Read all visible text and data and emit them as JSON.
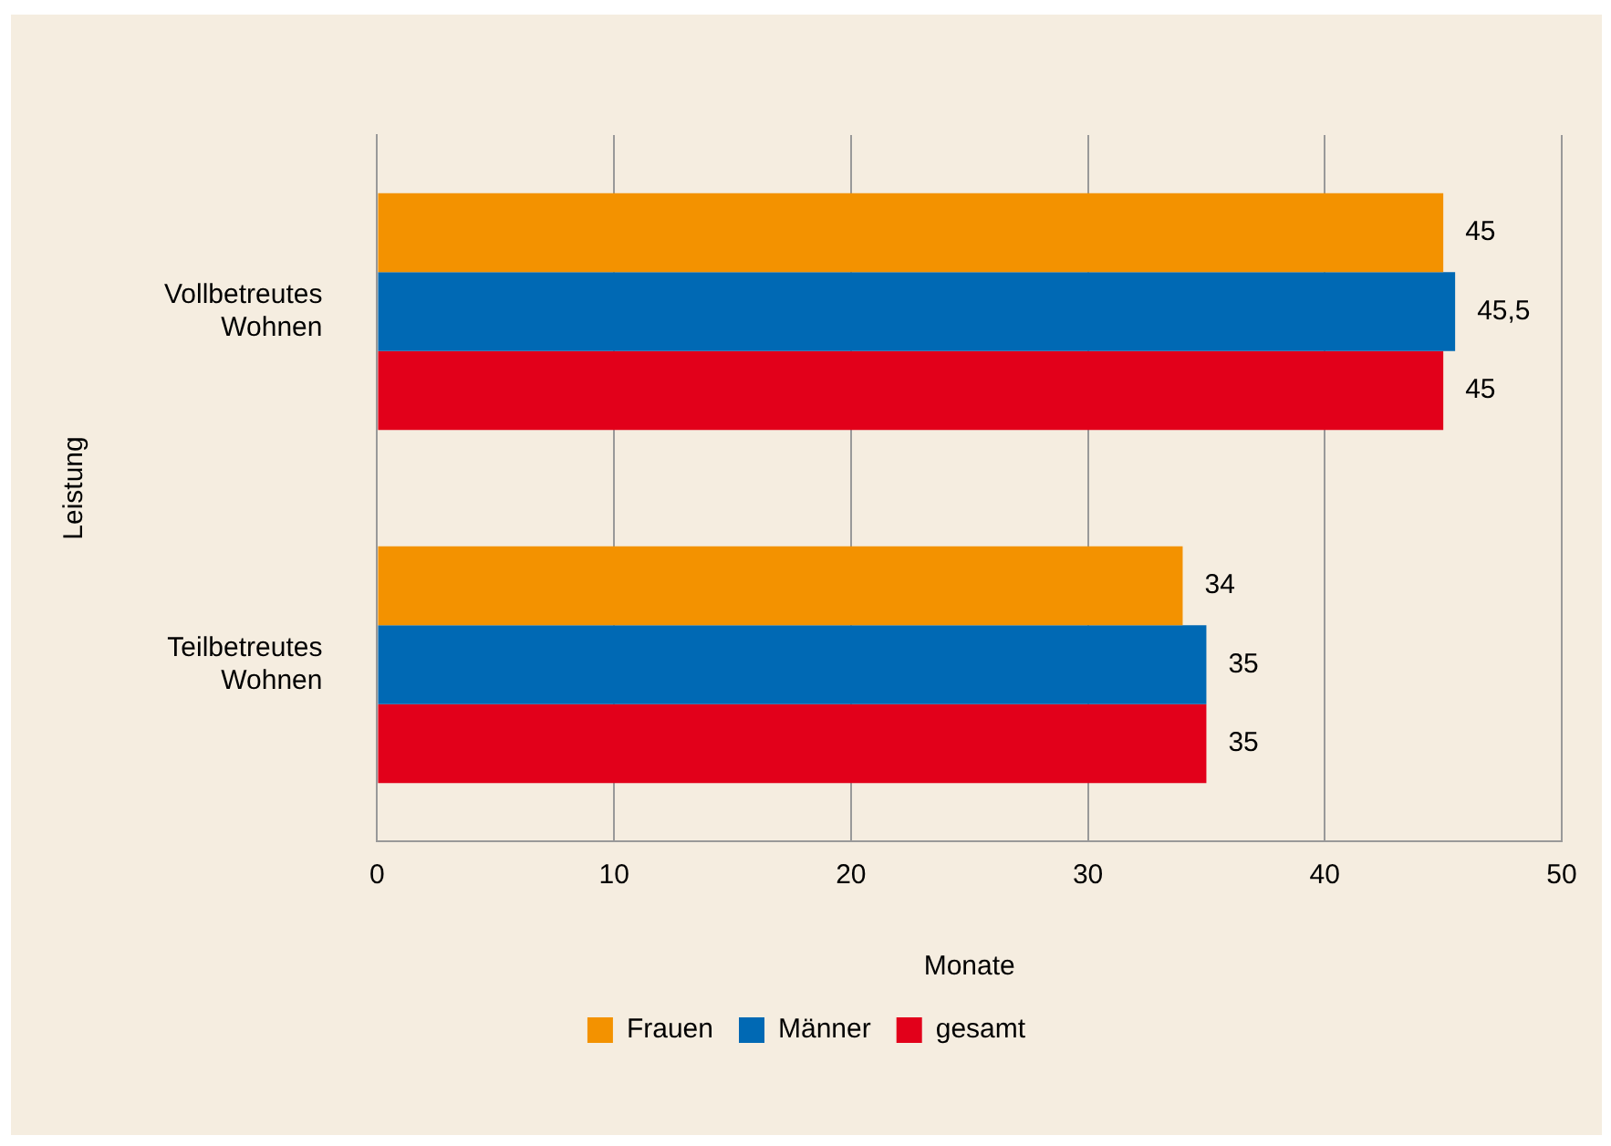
{
  "chart_data": {
    "type": "bar",
    "orientation": "horizontal",
    "xlabel": "Monate",
    "ylabel": "Leistung",
    "categories": [
      "Vollbetreutes Wohnen",
      "Teilbetreutes Wohnen"
    ],
    "series": [
      {
        "name": "Frauen",
        "color": "#f39200",
        "values": [
          45,
          34
        ],
        "value_labels": [
          "45",
          "34"
        ]
      },
      {
        "name": "Männer",
        "color": "#0069b4",
        "values": [
          45.5,
          35
        ],
        "value_labels": [
          "45,5",
          "35"
        ]
      },
      {
        "name": "gesamt",
        "color": "#e2001a",
        "values": [
          45,
          35
        ],
        "value_labels": [
          "45",
          "35"
        ]
      }
    ],
    "xlim": [
      0,
      50
    ],
    "xticks": [
      0,
      10,
      20,
      30,
      40,
      50
    ],
    "grid": "x",
    "legend": "bottom"
  }
}
